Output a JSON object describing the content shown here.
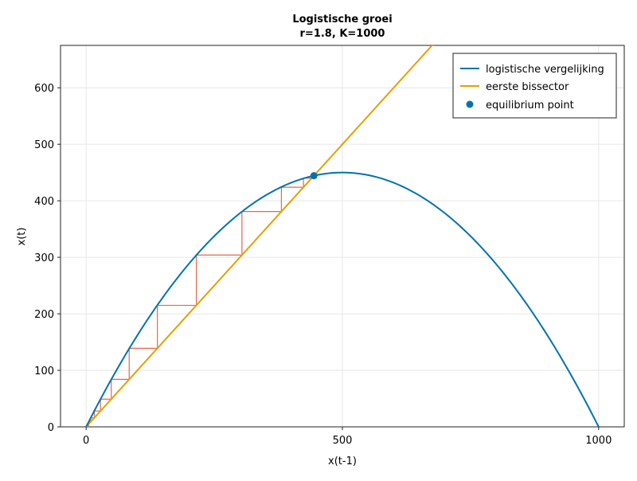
{
  "chart_data": {
    "type": "line",
    "title": "Logistische groei",
    "subtitle": "r=1.8, K=1000",
    "xlabel": "x(t-1)",
    "ylabel": "x(t)",
    "xlim": [
      -50,
      1050
    ],
    "ylim": [
      0,
      675
    ],
    "xticks": [
      0,
      500,
      1000
    ],
    "yticks": [
      0,
      100,
      200,
      300,
      400,
      500,
      600
    ],
    "grid": true,
    "legend_position": "top-right",
    "parameters": {
      "r": 1.8,
      "K": 1000
    },
    "series": [
      {
        "name": "logistische vergelijking",
        "kind": "line",
        "color": "#0072b2",
        "formula": "x(t) = r * x(t-1) * (1 - x(t-1)/K)",
        "domain": [
          0,
          1000
        ]
      },
      {
        "name": "eerste bissector",
        "kind": "line",
        "color": "#e69f00",
        "formula": "x(t) = x(t-1)"
      },
      {
        "name": "equilibrium point",
        "kind": "scatter",
        "color": "#0072b2",
        "points": [
          {
            "x": 444.4,
            "y": 444.4
          }
        ]
      }
    ],
    "cobweb": {
      "color": "#e8674a",
      "points": [
        {
          "x": 0,
          "y": 0
        },
        {
          "x": 5,
          "y": 9
        },
        {
          "x": 9,
          "y": 16
        },
        {
          "x": 16,
          "y": 28
        },
        {
          "x": 28,
          "y": 49
        },
        {
          "x": 49,
          "y": 84
        },
        {
          "x": 84,
          "y": 139
        },
        {
          "x": 139,
          "y": 215
        },
        {
          "x": 215,
          "y": 304
        },
        {
          "x": 304,
          "y": 381
        },
        {
          "x": 381,
          "y": 424
        },
        {
          "x": 424,
          "y": 440
        },
        {
          "x": 440,
          "y": 444
        }
      ]
    }
  }
}
